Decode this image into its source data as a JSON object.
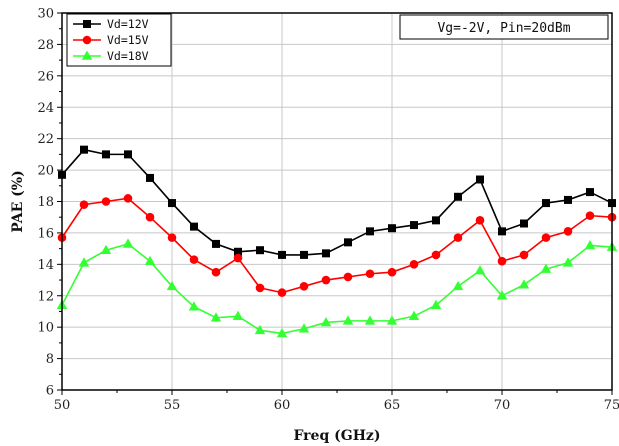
{
  "chart_data": {
    "type": "line",
    "xlabel": "Freq (GHz)",
    "ylabel": "PAE (%)",
    "xlim": [
      50,
      75
    ],
    "ylim": [
      6,
      30
    ],
    "x_ticks": [
      50,
      55,
      60,
      65,
      70,
      75
    ],
    "y_ticks": [
      6,
      8,
      10,
      12,
      14,
      16,
      18,
      20,
      22,
      24,
      26,
      28,
      30
    ],
    "grid": true,
    "legend_position": "top-left",
    "annotation": "Vg=-2V, Pin=20dBm",
    "x": [
      50,
      51,
      52,
      53,
      54,
      55,
      56,
      57,
      58,
      59,
      60,
      61,
      62,
      63,
      64,
      65,
      66,
      67,
      68,
      69,
      70,
      71,
      72,
      73,
      74,
      75
    ],
    "series": [
      {
        "name": "Vd=12V",
        "color": "#000000",
        "marker": "square",
        "values": [
          19.7,
          21.3,
          21.0,
          21.0,
          19.5,
          17.9,
          16.4,
          15.3,
          14.8,
          14.9,
          14.6,
          14.6,
          14.7,
          15.4,
          16.1,
          16.3,
          16.5,
          16.8,
          18.3,
          19.4,
          16.1,
          16.6,
          17.9,
          18.1,
          18.6,
          17.9
        ]
      },
      {
        "name": "Vd=15V",
        "color": "#ff0000",
        "marker": "circle",
        "values": [
          15.7,
          17.8,
          18.0,
          18.2,
          17.0,
          15.7,
          14.3,
          13.5,
          14.4,
          12.5,
          12.2,
          12.6,
          13.0,
          13.2,
          13.4,
          13.5,
          14.0,
          14.6,
          15.7,
          16.8,
          14.2,
          14.6,
          15.7,
          16.1,
          17.1,
          17.0
        ]
      },
      {
        "name": "Vd=18V",
        "color": "#33ff33",
        "marker": "triangle",
        "values": [
          11.4,
          14.1,
          14.9,
          15.3,
          14.2,
          12.6,
          11.3,
          10.6,
          10.7,
          9.8,
          9.6,
          9.9,
          10.3,
          10.4,
          10.4,
          10.4,
          10.7,
          11.4,
          12.6,
          13.6,
          12.0,
          12.7,
          13.7,
          14.1,
          15.2,
          15.1
        ]
      }
    ]
  }
}
